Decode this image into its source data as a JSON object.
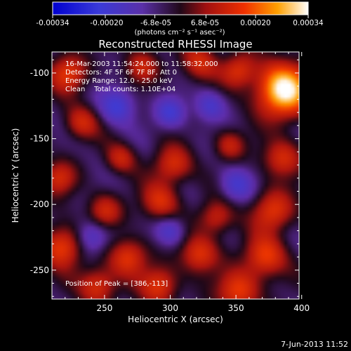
{
  "colorbar": {
    "ticks": [
      "-0.00034",
      "-0.00020",
      "-6.8e-05",
      "6.8e-05",
      "0.00020",
      "0.00034"
    ],
    "tick_values": [
      -0.00034,
      -0.0002,
      -6.8e-05,
      6.8e-05,
      0.0002,
      0.00034
    ],
    "unit_label": "(photons cm⁻² s⁻¹ asec⁻²)",
    "range": [
      -0.00034,
      0.00034
    ]
  },
  "image_info": {
    "time_range": "16-Mar-2003 11:54:24.000 to 11:58:32.000",
    "detectors": "Detectors: 4F 5F 6F 7F 8F, Att 0",
    "energy_range": "Energy Range: 12.0 - 25.0 keV",
    "method_counts": "Clean    Total counts: 1.10E+04",
    "peak_position": "Position of Peak = [386,-113]"
  },
  "footer": {
    "timestamp": "7-Jun-2013 11:52"
  },
  "chart_data": {
    "type": "heatmap",
    "title": "Reconstructed RHESSI Image",
    "xlabel": "Heliocentric X (arcsec)",
    "ylabel": "Heliocentric Y (arcsec)",
    "xlim": [
      210,
      398
    ],
    "ylim": [
      -272,
      -84
    ],
    "xticks": [
      250,
      300,
      350,
      400
    ],
    "yticks": [
      -100,
      -150,
      -200,
      -250
    ],
    "peak": {
      "x": 386,
      "y": -113
    },
    "colormap": "blue-purple-red-orange-yellow-white (RHESSI)",
    "sources": [
      {
        "x": 386,
        "y": -113,
        "s": 14,
        "a": 1.25
      },
      {
        "x": 352,
        "y": -98,
        "s": 9,
        "a": 0.55
      },
      {
        "x": 322,
        "y": -92,
        "s": 10,
        "a": 0.5
      },
      {
        "x": 278,
        "y": -95,
        "s": 9,
        "a": 0.45
      },
      {
        "x": 222,
        "y": -100,
        "s": 10,
        "a": 0.6
      },
      {
        "x": 232,
        "y": -138,
        "s": 9,
        "a": 0.5
      },
      {
        "x": 262,
        "y": -165,
        "s": 8,
        "a": 0.45
      },
      {
        "x": 302,
        "y": -170,
        "s": 10,
        "a": 0.55
      },
      {
        "x": 345,
        "y": -155,
        "s": 8,
        "a": 0.45
      },
      {
        "x": 385,
        "y": -165,
        "s": 10,
        "a": 0.55
      },
      {
        "x": 215,
        "y": -180,
        "s": 9,
        "a": 0.5
      },
      {
        "x": 250,
        "y": -205,
        "s": 9,
        "a": 0.5
      },
      {
        "x": 292,
        "y": -198,
        "s": 10,
        "a": 0.55
      },
      {
        "x": 335,
        "y": -210,
        "s": 9,
        "a": 0.5
      },
      {
        "x": 378,
        "y": -205,
        "s": 11,
        "a": 0.6
      },
      {
        "x": 218,
        "y": -232,
        "s": 11,
        "a": 0.7
      },
      {
        "x": 268,
        "y": -240,
        "s": 10,
        "a": 0.6
      },
      {
        "x": 322,
        "y": -238,
        "s": 10,
        "a": 0.6
      },
      {
        "x": 372,
        "y": -240,
        "s": 11,
        "a": 0.65
      },
      {
        "x": 245,
        "y": -262,
        "s": 10,
        "a": 0.6
      },
      {
        "x": 292,
        "y": -262,
        "s": 10,
        "a": 0.6
      },
      {
        "x": 352,
        "y": -266,
        "s": 11,
        "a": 0.65
      },
      {
        "x": 300,
        "y": -130,
        "s": 8,
        "a": -0.45
      },
      {
        "x": 260,
        "y": -125,
        "s": 9,
        "a": -0.5
      },
      {
        "x": 330,
        "y": -125,
        "s": 8,
        "a": -0.4
      },
      {
        "x": 240,
        "y": -225,
        "s": 9,
        "a": -0.45
      },
      {
        "x": 300,
        "y": -220,
        "s": 8,
        "a": -0.4
      },
      {
        "x": 350,
        "y": -185,
        "s": 9,
        "a": -0.4
      }
    ]
  }
}
